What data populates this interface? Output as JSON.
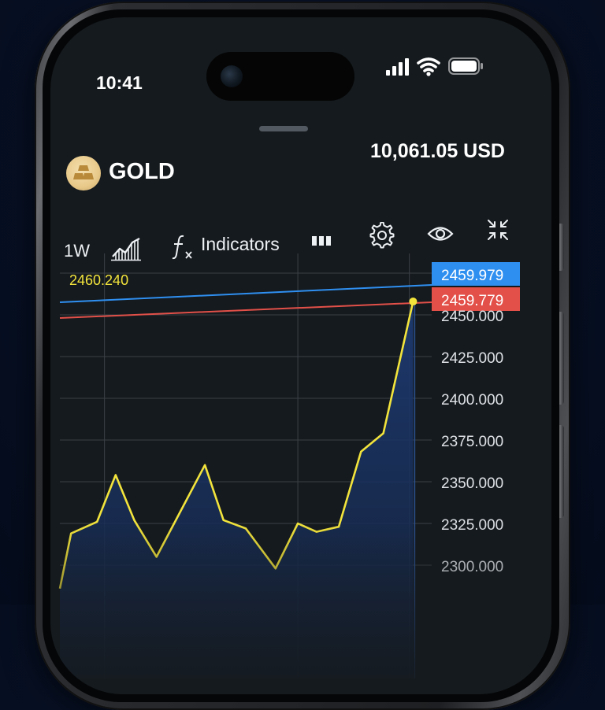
{
  "status_bar": {
    "time": "10:41",
    "icons": [
      "signal-icon",
      "wifi-icon",
      "battery-icon"
    ]
  },
  "asset": {
    "name": "GOLD",
    "icon": "gold-bars-icon",
    "icon_color": "#e8c98a"
  },
  "account": {
    "balance": "10,061.05 USD"
  },
  "toolbar": {
    "timeframe": "1W",
    "chart_type_icon": "area-chart-icon",
    "indicators_icon": "fx-icon",
    "indicators_label": "Indicators",
    "tools": [
      "bar-count-icon",
      "gear-icon",
      "eye-icon",
      "collapse-icon"
    ]
  },
  "chart_data": {
    "type": "line",
    "y_ticks": [
      2450,
      2425,
      2400,
      2375,
      2350,
      2325,
      2300
    ],
    "y_tick_labels": [
      "2450.000",
      "2425.000",
      "2400.000",
      "2375.000",
      "2350.000",
      "2325.000",
      "2300.000"
    ],
    "ylim": [
      2284,
      2476
    ],
    "xlim": [
      0,
      100
    ],
    "series": [
      {
        "values": [
          [
            0,
            2286
          ],
          [
            3,
            2319
          ],
          [
            10,
            2326
          ],
          [
            15,
            2354
          ],
          [
            20,
            2327
          ],
          [
            26,
            2305
          ],
          [
            39,
            2360
          ],
          [
            44,
            2327
          ],
          [
            50,
            2322
          ],
          [
            58,
            2298
          ],
          [
            64,
            2325
          ],
          [
            69,
            2320
          ],
          [
            75,
            2323
          ],
          [
            81,
            2368
          ],
          [
            87,
            2379
          ],
          [
            95,
            2458
          ]
        ]
      }
    ],
    "levels": [
      {
        "value": 2460.24,
        "label": "2460.240",
        "color": "#f3e43c"
      },
      {
        "value": 2459.979,
        "label": "2459.979",
        "color": "#2f8ff0"
      },
      {
        "value": 2459.779,
        "label": "2459.779",
        "color": "#e25049"
      }
    ],
    "line_color": "#f3e43c",
    "grid": true
  }
}
